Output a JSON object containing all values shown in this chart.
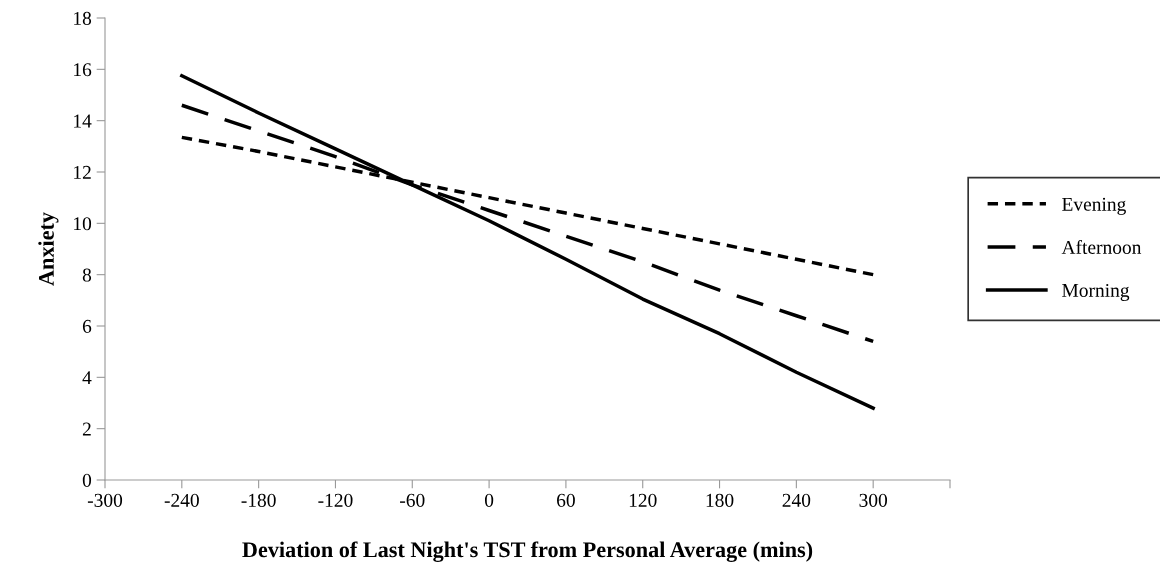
{
  "chart_data": {
    "type": "line",
    "xlabel": "Deviation of Last Night's TST from Personal Average (mins)",
    "ylabel": "Anxiety",
    "x": [
      -240,
      -180,
      -120,
      -60,
      0,
      60,
      120,
      180,
      240,
      300
    ],
    "series": [
      {
        "name": "Evening",
        "color": "#000000",
        "line_style": "dotted",
        "values": [
          13.35,
          12.8,
          12.2,
          11.6,
          11.0,
          10.4,
          9.8,
          9.2,
          8.6,
          8.0
        ]
      },
      {
        "name": "Afternoon",
        "color": "#000000",
        "line_style": "dashed",
        "values": [
          14.6,
          13.6,
          12.6,
          11.5,
          10.5,
          9.5,
          8.5,
          7.4,
          6.4,
          5.4
        ]
      },
      {
        "name": "Morning",
        "color": "#000000",
        "line_style": "solid",
        "values": [
          15.75,
          14.3,
          12.9,
          11.5,
          10.1,
          8.6,
          7.05,
          5.7,
          4.2,
          2.8
        ]
      }
    ],
    "xlim": [
      -300,
      360
    ],
    "xticks": [
      -300,
      -240,
      -180,
      -120,
      -60,
      0,
      60,
      120,
      180,
      240,
      300,
      {
        "value": 360,
        "label": null
      }
    ],
    "ylim": [
      0,
      18
    ],
    "yticks": [
      0,
      2,
      4,
      6,
      8,
      10,
      12,
      14,
      16,
      18
    ],
    "grid": false,
    "legend": "right",
    "marker": "none"
  }
}
